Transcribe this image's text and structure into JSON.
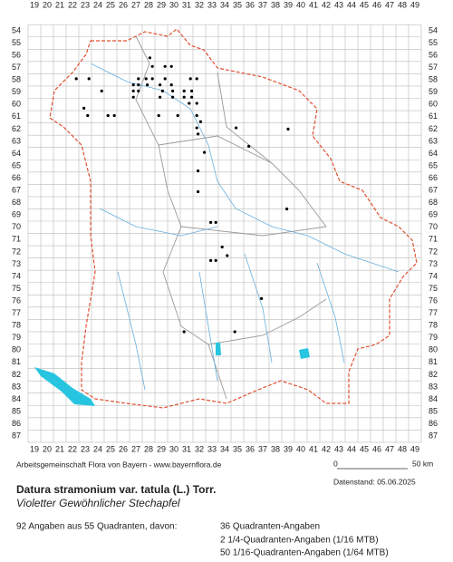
{
  "map": {
    "columns": [
      19,
      20,
      21,
      22,
      23,
      24,
      25,
      26,
      27,
      28,
      29,
      30,
      31,
      32,
      33,
      34,
      35,
      36,
      37,
      38,
      39,
      40,
      41,
      42,
      43,
      44,
      45,
      46,
      47,
      48,
      49
    ],
    "rows": [
      54,
      55,
      56,
      57,
      58,
      59,
      60,
      61,
      62,
      63,
      64,
      65,
      66,
      67,
      68,
      69,
      70,
      71,
      72,
      73,
      74,
      75,
      76,
      77,
      78,
      79,
      80,
      81,
      82,
      83,
      84,
      85,
      86,
      87
    ],
    "points": [
      [
        28.1,
        56.2
      ],
      [
        28.3,
        56.9
      ],
      [
        29.3,
        56.9
      ],
      [
        29.8,
        56.9
      ],
      [
        22.3,
        57.9
      ],
      [
        23.3,
        57.9
      ],
      [
        27.2,
        57.9
      ],
      [
        27.8,
        57.9
      ],
      [
        28.3,
        57.9
      ],
      [
        29.3,
        57.9
      ],
      [
        31.3,
        57.9
      ],
      [
        31.8,
        57.9
      ],
      [
        26.8,
        58.4
      ],
      [
        27.2,
        58.4
      ],
      [
        27.9,
        58.4
      ],
      [
        28.9,
        58.4
      ],
      [
        29.8,
        58.4
      ],
      [
        24.3,
        58.9
      ],
      [
        26.8,
        58.9
      ],
      [
        27.2,
        58.9
      ],
      [
        29.1,
        58.9
      ],
      [
        29.9,
        58.9
      ],
      [
        30.8,
        58.9
      ],
      [
        31.4,
        58.9
      ],
      [
        26.8,
        59.4
      ],
      [
        28.9,
        59.4
      ],
      [
        29.9,
        59.4
      ],
      [
        30.8,
        59.4
      ],
      [
        31.4,
        59.4
      ],
      [
        31.2,
        59.9
      ],
      [
        31.8,
        59.9
      ],
      [
        22.9,
        60.3
      ],
      [
        23.2,
        60.9
      ],
      [
        24.8,
        60.9
      ],
      [
        25.3,
        60.9
      ],
      [
        28.8,
        60.9
      ],
      [
        30.3,
        60.9
      ],
      [
        31.8,
        60.9
      ],
      [
        32.1,
        61.4
      ],
      [
        31.8,
        61.9
      ],
      [
        34.9,
        61.9
      ],
      [
        39.0,
        62.0
      ],
      [
        31.9,
        62.4
      ],
      [
        35.9,
        63.4
      ],
      [
        32.4,
        63.9
      ],
      [
        31.9,
        65.4
      ],
      [
        31.9,
        67.1
      ],
      [
        38.9,
        68.5
      ],
      [
        32.9,
        69.6
      ],
      [
        33.3,
        69.6
      ],
      [
        33.8,
        71.6
      ],
      [
        34.2,
        72.3
      ],
      [
        32.9,
        72.7
      ],
      [
        33.3,
        72.7
      ],
      [
        36.9,
        75.8
      ],
      [
        30.8,
        78.5
      ],
      [
        34.8,
        78.5
      ]
    ],
    "credit": "Arbeitsgemeinschaft Flora von Bayern - www.bayernflora.de",
    "scale_start": "0",
    "scale_end": "50 km",
    "date": "Datenstand: 05.06.2025",
    "title": "Datura stramonium var. tatula (L.) Torr.",
    "subtitle": "Violetter Gewöhnlicher Stechapfel",
    "summary": "92 Angaben aus 55 Quadranten, davon:",
    "breakdown": [
      "36 Quadranten-Angaben",
      "2 1/4-Quadranten-Angaben (1/16 MTB)",
      "50 1/16-Quadranten-Angaben (1/64 MTB)"
    ]
  }
}
